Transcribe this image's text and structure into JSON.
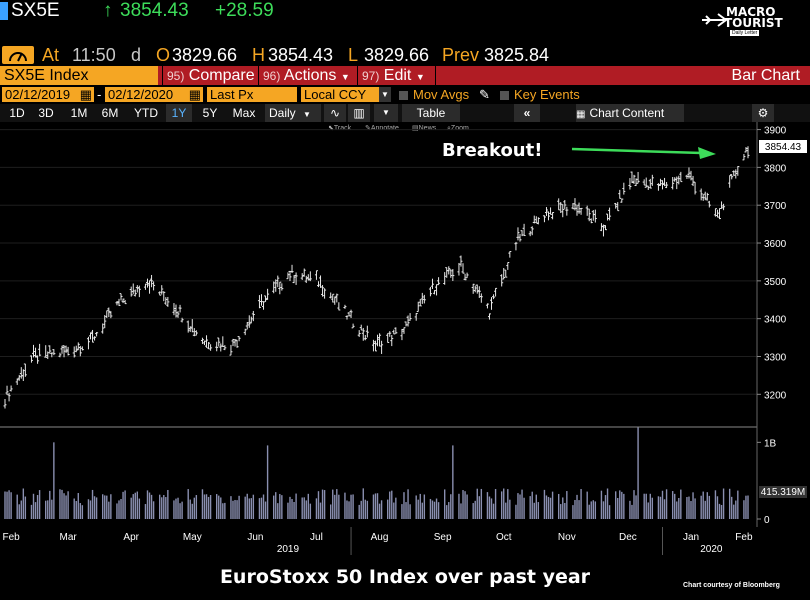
{
  "header": {
    "ticker": "SX5E",
    "arrow": "↑",
    "last": "3854.43",
    "change": "+28.59",
    "at_label": "At",
    "time": "11:50",
    "time_suffix": "d",
    "open_label": "O",
    "open": "3829.66",
    "high_label": "H",
    "high": "3854.43",
    "low_label": "L",
    "low": "3829.66",
    "prev_label": "Prev",
    "prev": "3825.84"
  },
  "menu": {
    "security": "SX5E Index",
    "compare_num": "95)",
    "compare": "Compare",
    "actions_num": "96)",
    "actions": "Actions",
    "edit_num": "97)",
    "edit": "Edit",
    "chart_type": "Bar Chart"
  },
  "range": {
    "start": "02/12/2019",
    "end": "02/12/2020",
    "field": "Last Px",
    "currency": "Local CCY",
    "mov_avgs": "Mov Avgs",
    "key_events": "Key Events"
  },
  "toolbar": {
    "periods": [
      "1D",
      "3D",
      "1M",
      "6M",
      "YTD",
      "1Y",
      "5Y",
      "Max"
    ],
    "selected": "1Y",
    "frequency": "Daily",
    "table": "Table",
    "chart_content": "Chart Content",
    "tools": [
      "Track",
      "Annotate",
      "News",
      "Zoom"
    ]
  },
  "logo": {
    "line1": "MACRO",
    "line2": "TOURIST",
    "tagline": "Daily Letter"
  },
  "annotation": "Breakout!",
  "caption": "EuroStoxx 50 Index over past year",
  "courtesy": "Chart courtesy of Bloomberg",
  "colors": {
    "accent_orange": "#f5a623",
    "menu_red": "#b01c24",
    "positive_green": "#3ddc5a",
    "highlight_blue": "#3aa0ff"
  },
  "chart_data": [
    {
      "type": "bar",
      "title": "",
      "xlabel": "",
      "ylabel": "",
      "ylim": [
        3140,
        3920
      ],
      "yticks": [
        3200,
        3300,
        3400,
        3500,
        3600,
        3700,
        3800,
        3900
      ],
      "last_value_label": "3854.43",
      "x": [
        "2019-02-12",
        "2019-02-26",
        "2019-03-12",
        "2019-03-26",
        "2019-04-09",
        "2019-04-23",
        "2019-05-07",
        "2019-05-21",
        "2019-06-04",
        "2019-06-18",
        "2019-07-02",
        "2019-07-16",
        "2019-07-30",
        "2019-08-13",
        "2019-08-27",
        "2019-09-10",
        "2019-09-24",
        "2019-10-08",
        "2019-10-22",
        "2019-11-05",
        "2019-11-19",
        "2019-12-03",
        "2019-12-17",
        "2019-12-31",
        "2020-01-14",
        "2020-01-28",
        "2020-02-07",
        "2020-02-12"
      ],
      "close": [
        3190,
        3300,
        3310,
        3340,
        3440,
        3500,
        3430,
        3340,
        3330,
        3440,
        3520,
        3500,
        3410,
        3330,
        3370,
        3480,
        3540,
        3420,
        3610,
        3680,
        3700,
        3640,
        3770,
        3750,
        3780,
        3670,
        3800,
        3854
      ],
      "x_tick_labels": [
        "Feb",
        "Mar",
        "Apr",
        "May",
        "Jun",
        "Jul",
        "Aug",
        "Sep",
        "Oct",
        "Nov",
        "Dec",
        "Jan",
        "Feb"
      ],
      "year_labels": [
        "2019",
        "2020"
      ]
    },
    {
      "type": "bar",
      "title": "",
      "ylabel": "",
      "yticks_labels": [
        "1B",
        "0"
      ],
      "ylim": [
        0,
        1200000000
      ],
      "last_volume_label": "415.319M",
      "volume_typical": 400000000,
      "volume_spikes": [
        {
          "x": "2019-03-08",
          "value": 1000000000
        },
        {
          "x": "2019-06-21",
          "value": 960000000
        },
        {
          "x": "2019-09-20",
          "value": 960000000
        },
        {
          "x": "2019-12-20",
          "value": 1200000000
        }
      ]
    }
  ]
}
